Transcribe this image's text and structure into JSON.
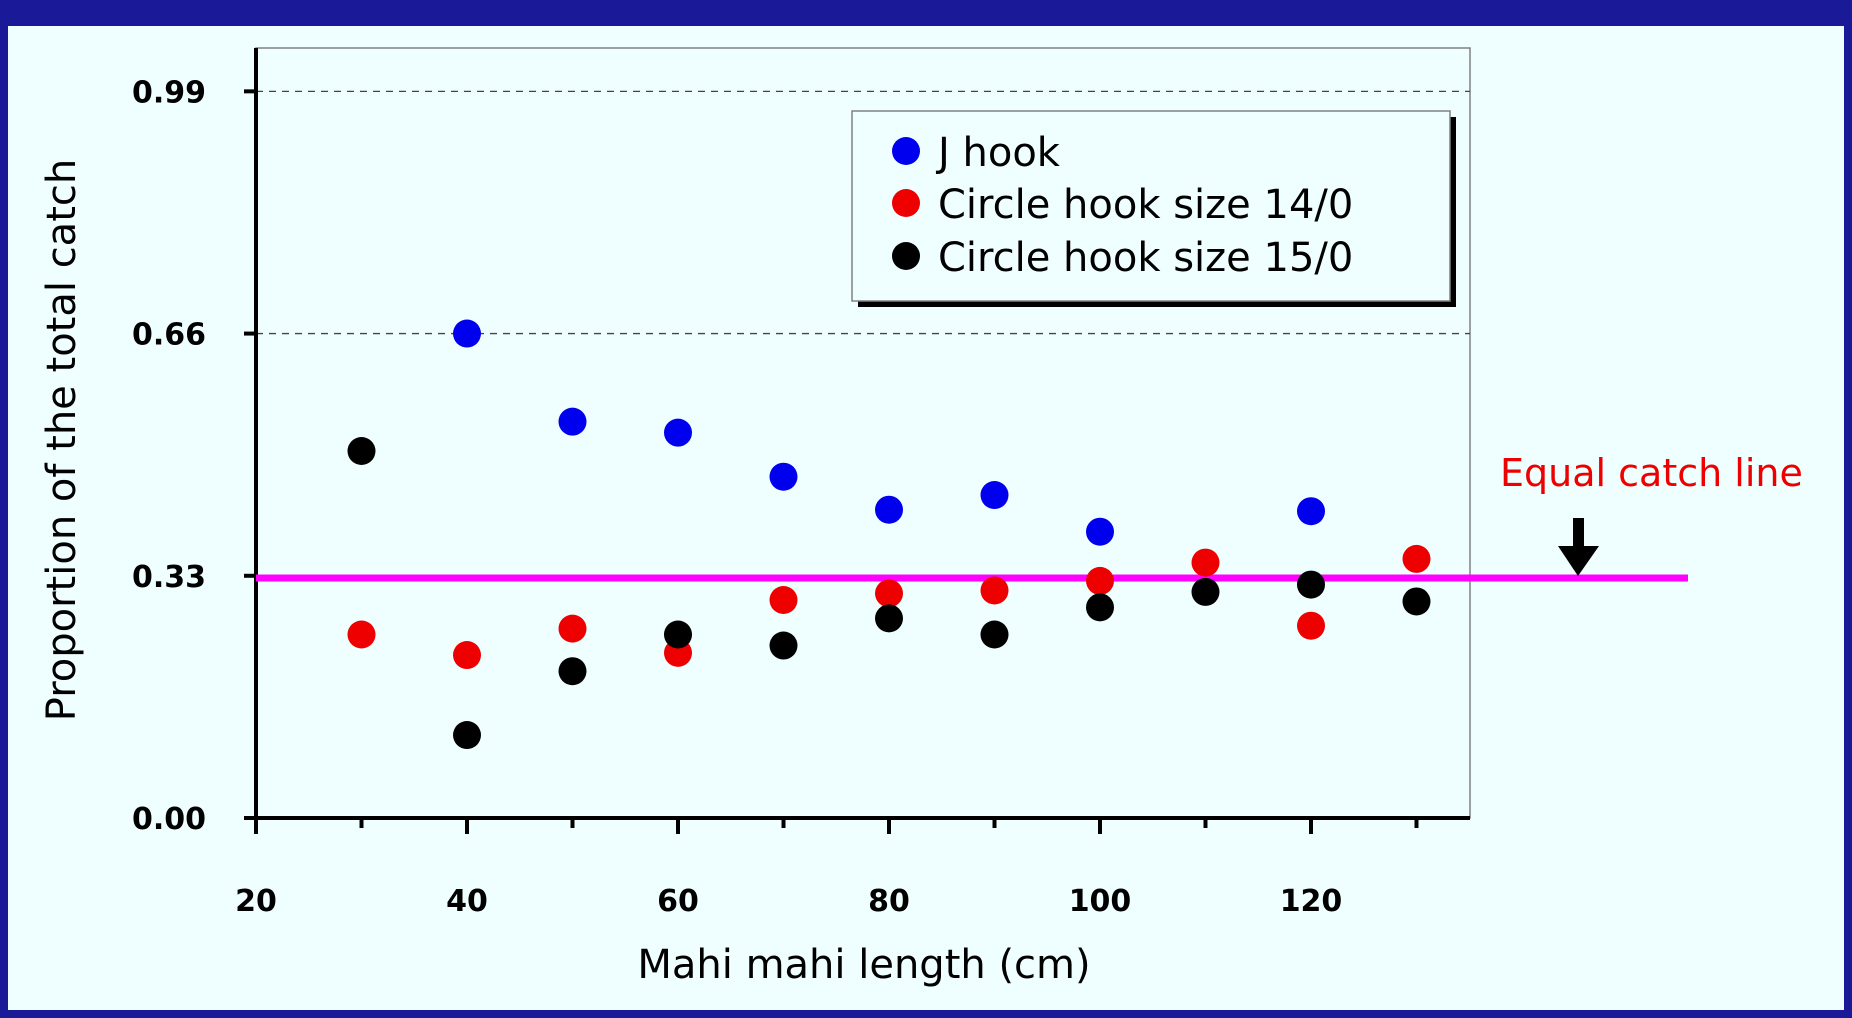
{
  "chart_data": {
    "type": "scatter",
    "title": "",
    "xlabel": "Mahi mahi length (cm)",
    "ylabel": "Proportion of  the total catch",
    "xlim": [
      20,
      135
    ],
    "ylim": [
      0,
      1.05
    ],
    "x_ticks": [
      20,
      40,
      60,
      80,
      100,
      120
    ],
    "x_tick_labels": [
      "20",
      "40",
      "60",
      "80",
      "100",
      "120"
    ],
    "y_ticks": [
      0,
      0.33,
      0.66,
      0.99
    ],
    "y_tick_labels": [
      "0.00",
      "0.33",
      "0.66",
      "0.99"
    ],
    "grid": "horizontal dashed at y ticks",
    "legend_placement": "top-right",
    "series": [
      {
        "name": "J hook",
        "color": "#0000ee",
        "x": [
          40,
          50,
          60,
          70,
          80,
          90,
          100,
          120
        ],
        "y": [
          0.66,
          0.54,
          0.525,
          0.465,
          0.42,
          0.44,
          0.39,
          0.418
        ]
      },
      {
        "name": "Circle hook size 14/0",
        "color": "#ee0000",
        "x": [
          30,
          40,
          50,
          60,
          70,
          80,
          90,
          100,
          110,
          120,
          130
        ],
        "y": [
          0.25,
          0.222,
          0.258,
          0.225,
          0.297,
          0.306,
          0.31,
          0.323,
          0.348,
          0.262,
          0.353
        ]
      },
      {
        "name": "Circle hook size 15/0",
        "color": "#000000",
        "x": [
          30,
          40,
          50,
          60,
          70,
          80,
          90,
          100,
          110,
          120,
          130
        ],
        "y": [
          0.5,
          0.113,
          0.2,
          0.25,
          0.235,
          0.272,
          0.25,
          0.287,
          0.308,
          0.318,
          0.295
        ]
      }
    ],
    "reference_line": {
      "y": 0.33,
      "color": "#ff00ff"
    },
    "annotation": {
      "text": "Equal catch line",
      "color": "#ee0000"
    }
  }
}
